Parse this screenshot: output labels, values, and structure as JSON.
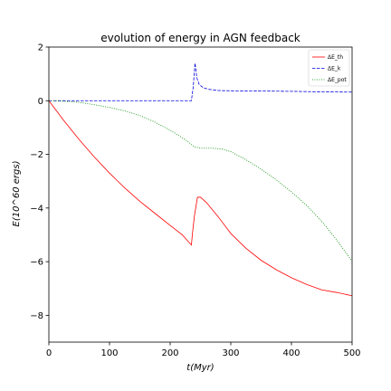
{
  "chart_data": {
    "type": "line",
    "title": "evolution of energy in AGN feedback",
    "xlabel": "t(Myr)",
    "ylabel": "E(10^60 ergs)",
    "xlim": [
      0,
      500
    ],
    "ylim": [
      -9,
      2
    ],
    "xticks": [
      "0",
      "100",
      "200",
      "300",
      "400",
      "500"
    ],
    "yticks": [
      "2",
      "0",
      "−2",
      "−4",
      "−6",
      "−8"
    ],
    "grid": false,
    "legend_position": "top-right",
    "series": [
      {
        "name": "ΔE_th",
        "color": "#ff0000",
        "style": "solid",
        "x": [
          0,
          25,
          50,
          75,
          100,
          125,
          150,
          175,
          200,
          220,
          235,
          237,
          240,
          245,
          250,
          260,
          280,
          300,
          325,
          350,
          375,
          400,
          425,
          450,
          475,
          500
        ],
        "y": [
          0,
          -0.75,
          -1.45,
          -2.1,
          -2.7,
          -3.25,
          -3.75,
          -4.2,
          -4.65,
          -5.0,
          -5.38,
          -4.9,
          -4.3,
          -3.6,
          -3.6,
          -3.8,
          -4.35,
          -4.95,
          -5.5,
          -5.95,
          -6.3,
          -6.6,
          -6.85,
          -7.05,
          -7.15,
          -7.27
        ]
      },
      {
        "name": "ΔE_k",
        "color": "#0000dd",
        "style": "dashed",
        "x": [
          0,
          100,
          200,
          235,
          238,
          241,
          244,
          248,
          255,
          265,
          280,
          300,
          350,
          400,
          450,
          500
        ],
        "y": [
          0,
          0,
          0,
          0,
          0.5,
          1.4,
          0.85,
          0.6,
          0.48,
          0.42,
          0.38,
          0.37,
          0.36,
          0.35,
          0.33,
          0.32
        ]
      },
      {
        "name": "ΔE_pot",
        "color": "#008800",
        "style": "dotted",
        "x": [
          0,
          25,
          50,
          75,
          100,
          125,
          150,
          175,
          200,
          225,
          240,
          250,
          270,
          285,
          300,
          325,
          350,
          375,
          400,
          425,
          450,
          475,
          500
        ],
        "y": [
          0,
          -0.02,
          -0.06,
          -0.15,
          -0.25,
          -0.38,
          -0.55,
          -0.8,
          -1.1,
          -1.45,
          -1.72,
          -1.77,
          -1.77,
          -1.8,
          -1.9,
          -2.2,
          -2.55,
          -2.95,
          -3.4,
          -3.9,
          -4.5,
          -5.2,
          -5.98
        ]
      }
    ]
  }
}
